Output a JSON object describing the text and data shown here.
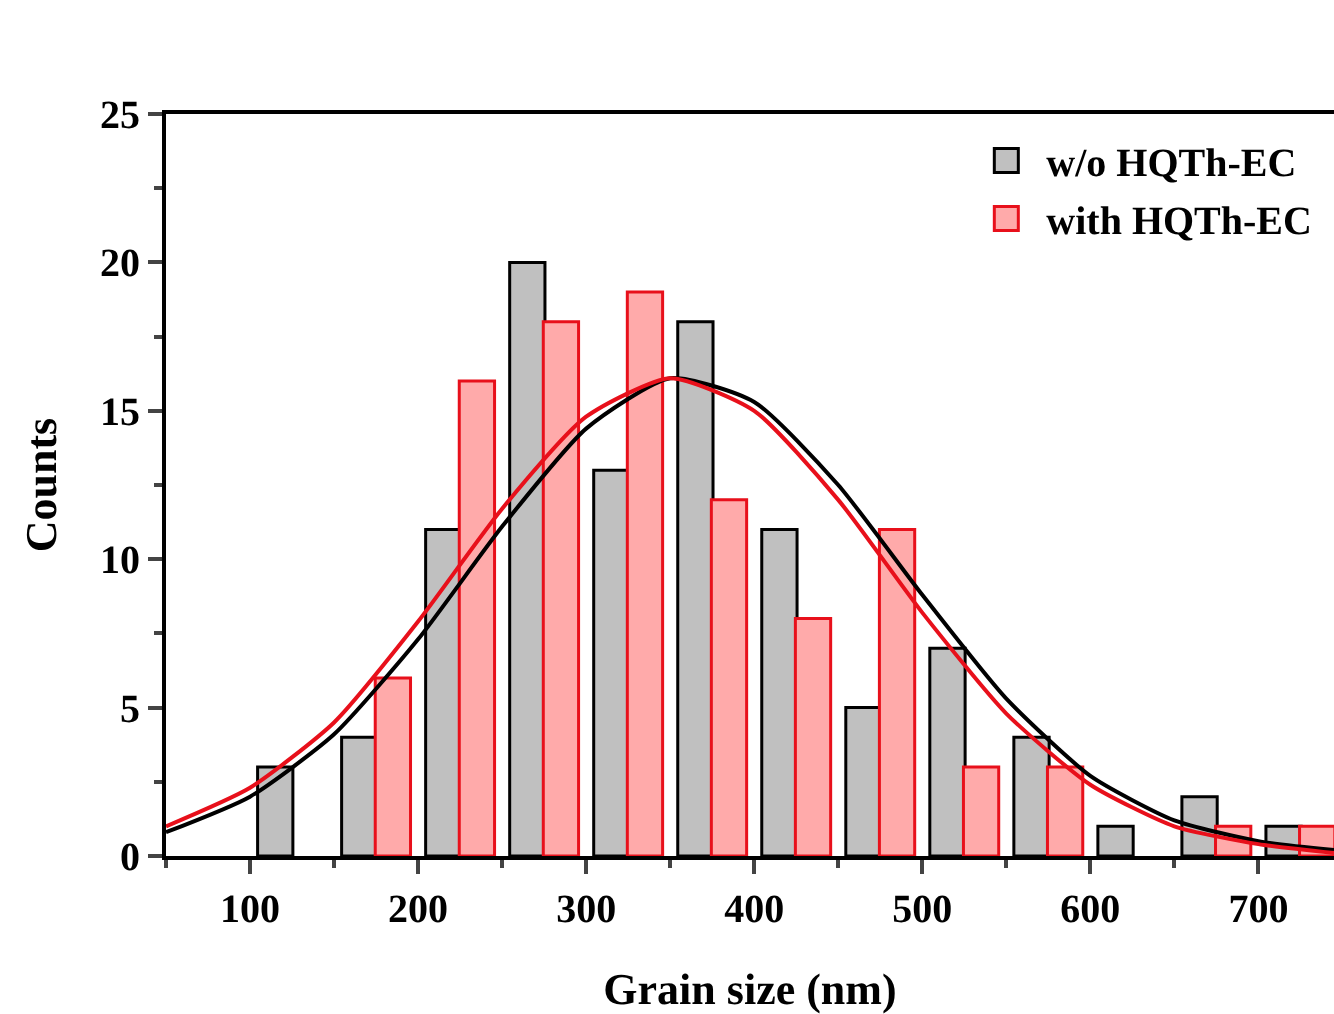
{
  "chart_data": {
    "type": "bar",
    "xlabel": "Grain size (nm)",
    "ylabel": "Counts",
    "xlim": [
      50,
      745
    ],
    "xticks": [
      100,
      200,
      300,
      400,
      500,
      600,
      700
    ],
    "ylim": [
      0,
      25
    ],
    "yticks": [
      0,
      5,
      10,
      15,
      20,
      25
    ],
    "grid": false,
    "legend": "top right",
    "series": [
      {
        "name": "w/o HQTh-EC",
        "color": "#c0c0c0",
        "x": [
          115,
          165,
          215,
          265,
          315,
          365,
          415,
          465,
          515,
          565,
          615,
          665,
          715
        ],
        "values": [
          3,
          4,
          11,
          20,
          13,
          18,
          11,
          5,
          7,
          4,
          1,
          2,
          1
        ]
      },
      {
        "name": "with HQTh-EC",
        "color": "#ffaaaa",
        "x": [
          185,
          235,
          285,
          335,
          385,
          435,
          485,
          535,
          585,
          685,
          735
        ],
        "values": [
          6,
          16,
          18,
          19,
          12,
          8,
          11,
          3,
          3,
          1,
          1
        ]
      },
      {
        "type": "line",
        "color": "#000000",
        "x": [
          50,
          100,
          150,
          200,
          250,
          300,
          350,
          400,
          450,
          500,
          550,
          600,
          650,
          700,
          745
        ],
        "values": [
          0.8,
          2.0,
          4.1,
          7.3,
          11.1,
          14.4,
          16.1,
          15.3,
          12.5,
          8.8,
          5.3,
          2.7,
          1.2,
          0.5,
          0.2
        ]
      },
      {
        "type": "line",
        "color": "#e8101b",
        "x": [
          50,
          100,
          150,
          200,
          250,
          300,
          350,
          400,
          450,
          500,
          550,
          600,
          650,
          700,
          745
        ],
        "values": [
          1.0,
          2.3,
          4.5,
          7.9,
          11.7,
          14.8,
          16.1,
          15.0,
          12.0,
          8.2,
          4.8,
          2.4,
          1.0,
          0.4,
          0.1
        ]
      }
    ]
  }
}
